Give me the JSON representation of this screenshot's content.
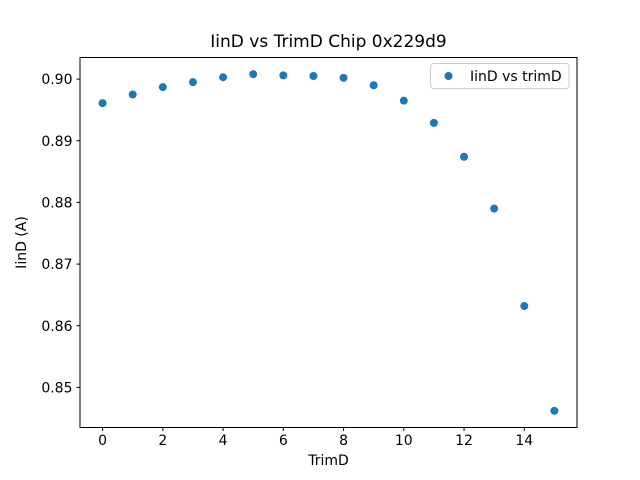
{
  "figure": {
    "title": "IinD vs TrimD Chip 0x229d9",
    "xlabel": "TrimD",
    "ylabel": "IinD (A)",
    "legend": {
      "label": "IinD vs trimD",
      "position": "upper right",
      "marker_icon": "filled-circle"
    },
    "colors": {
      "marker": "#1f77b4",
      "axis": "#000000",
      "background": "#ffffff",
      "legend_border": "#cccccc",
      "legend_fill": "#ffffff"
    }
  },
  "chart_data": {
    "type": "scatter",
    "title": "IinD vs TrimD Chip 0x229d9",
    "xlabel": "TrimD",
    "ylabel": "IinD (A)",
    "legend_entries": [
      "IinD vs trimD"
    ],
    "legend_position": "upper right",
    "grid": false,
    "marker": "circle",
    "marker_color": "#1f77b4",
    "x": [
      0,
      1,
      2,
      3,
      4,
      5,
      6,
      7,
      8,
      9,
      10,
      11,
      12,
      13,
      14,
      15
    ],
    "y": [
      0.8961,
      0.8975,
      0.8987,
      0.8995,
      0.9003,
      0.9008,
      0.9006,
      0.9005,
      0.9002,
      0.899,
      0.8965,
      0.8929,
      0.8874,
      0.879,
      0.8632,
      0.8462
    ],
    "xlim": [
      -0.75,
      15.75
    ],
    "ylim": [
      0.8435,
      0.9035
    ],
    "xticks": [
      0,
      2,
      4,
      6,
      8,
      10,
      12,
      14
    ],
    "yticks": [
      0.85,
      0.86,
      0.87,
      0.88,
      0.89,
      0.9
    ],
    "ytick_decimals": 2
  }
}
